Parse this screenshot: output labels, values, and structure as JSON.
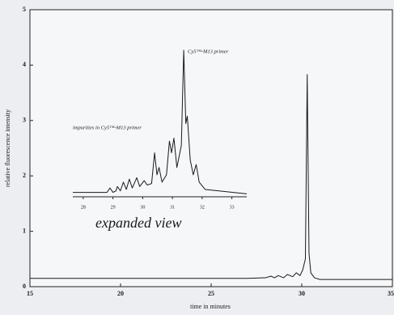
{
  "chart_data": [
    {
      "type": "line",
      "xlabel": "time in minutes",
      "ylabel": "relative fluorescence intensity",
      "x": [
        15,
        20,
        25,
        27,
        28,
        28.3,
        28.5,
        28.7,
        29.0,
        29.2,
        29.5,
        29.7,
        29.9,
        30.05,
        30.2,
        30.3,
        30.4,
        30.5,
        30.7,
        31,
        33,
        35
      ],
      "values": [
        0.15,
        0.15,
        0.15,
        0.15,
        0.16,
        0.19,
        0.16,
        0.2,
        0.16,
        0.22,
        0.18,
        0.25,
        0.2,
        0.3,
        0.5,
        3.83,
        0.6,
        0.25,
        0.16,
        0.13,
        0.13,
        0.13
      ],
      "color": "#1a1a1a",
      "xlim": [
        15,
        35
      ],
      "xticks": [
        15,
        20,
        25,
        30,
        35
      ],
      "ylim": [
        0,
        5
      ],
      "yticks": [
        0,
        1,
        2,
        3,
        4,
        5
      ],
      "grid": false
    },
    {
      "type": "line",
      "title": "expanded view",
      "annotations": [
        "Cy5™-M13 primer",
        "impurities in Cy5™-M13 primer"
      ],
      "x": [
        27.65,
        28.5,
        28.8,
        28.9,
        29.0,
        29.1,
        29.15,
        29.25,
        29.35,
        29.45,
        29.55,
        29.65,
        29.8,
        29.9,
        30.05,
        30.15,
        30.3,
        30.4,
        30.48,
        30.55,
        30.65,
        30.8,
        30.9,
        30.97,
        31.05,
        31.15,
        31.3,
        31.38,
        31.45,
        31.5,
        31.6,
        31.7,
        31.8,
        31.9,
        32.1,
        33.5
      ],
      "values": [
        0.03,
        0.03,
        0.03,
        0.06,
        0.03,
        0.04,
        0.07,
        0.04,
        0.1,
        0.05,
        0.12,
        0.06,
        0.13,
        0.07,
        0.11,
        0.08,
        0.09,
        0.3,
        0.15,
        0.2,
        0.1,
        0.15,
        0.38,
        0.3,
        0.4,
        0.2,
        0.35,
        1.0,
        0.5,
        0.55,
        0.25,
        0.15,
        0.22,
        0.1,
        0.05,
        0.02
      ],
      "color": "#1a1a1a",
      "xlim": [
        27.65,
        33.5
      ],
      "xticks": [
        28,
        29,
        30,
        31,
        32,
        33
      ],
      "ylim": [
        0,
        1
      ],
      "grid": false
    }
  ]
}
